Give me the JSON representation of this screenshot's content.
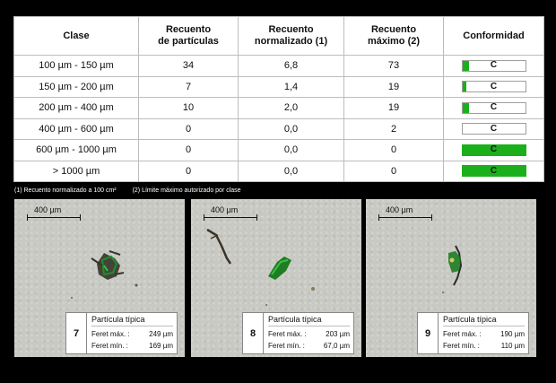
{
  "table": {
    "headers": [
      "Clase",
      "Recuento\nde partículas",
      "Recuento\nnormalizado (1)",
      "Recuento\nmáximo (2)",
      "Conformidad"
    ],
    "rows": [
      {
        "clase": "100 µm - 150 µm",
        "recuento": "34",
        "normalizado": "6,8",
        "maximo": "73",
        "conformidad": "C",
        "conf_fill": 0.1
      },
      {
        "clase": "150 µm - 200 µm",
        "recuento": "7",
        "normalizado": "1,4",
        "maximo": "19",
        "conformidad": "C",
        "conf_fill": 0.07
      },
      {
        "clase": "200 µm - 400 µm",
        "recuento": "10",
        "normalizado": "2,0",
        "maximo": "19",
        "conformidad": "C",
        "conf_fill": 0.1
      },
      {
        "clase": "400 µm - 600 µm",
        "recuento": "0",
        "normalizado": "0,0",
        "maximo": "2",
        "conformidad": "C",
        "conf_fill": 0
      },
      {
        "clase": "600 µm - 1000 µm",
        "recuento": "0",
        "normalizado": "0,0",
        "maximo": "0",
        "conformidad": "C",
        "conf_fill": 1
      },
      {
        "clase": "> 1000 µm",
        "recuento": "0",
        "normalizado": "0,0",
        "maximo": "0",
        "conformidad": "C",
        "conf_fill": 1
      }
    ]
  },
  "footnotes": {
    "note1": "(1) Recuento normalizado a 100 cm²",
    "note2": "(2) Límite máximo autorizado por clase"
  },
  "panels": [
    {
      "number": "7",
      "scale": "400 µm",
      "title": "Partícula típica",
      "feret_max_label": "Feret máx. :",
      "feret_max": "249 µm",
      "feret_min_label": "Feret mín. :",
      "feret_min": "169 µm"
    },
    {
      "number": "8",
      "scale": "400 µm",
      "title": "Partícula típica",
      "feret_max_label": "Feret máx. :",
      "feret_max": "203 µm",
      "feret_min_label": "Feret mín. :",
      "feret_min": "67,0 µm"
    },
    {
      "number": "9",
      "scale": "400 µm",
      "title": "Partícula típica",
      "feret_max_label": "Feret máx. :",
      "feret_max": "190 µm",
      "feret_min_label": "Feret mín. :",
      "feret_min": "110 µm"
    }
  ],
  "colors": {
    "conforming_fill": "#1bb01b",
    "background": "#000000",
    "panel_background": "#c9c9c4"
  }
}
